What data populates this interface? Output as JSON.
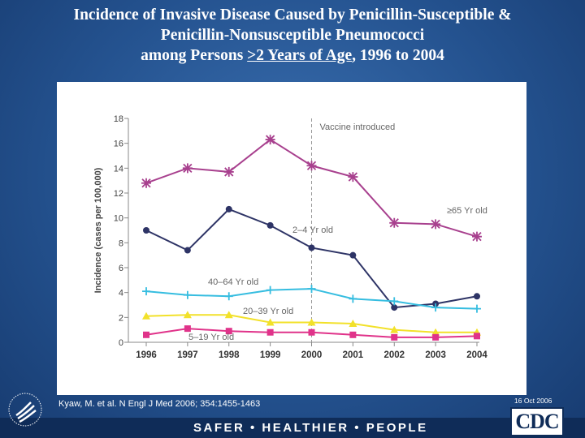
{
  "slide": {
    "title_line1": "Incidence of Invasive Disease Caused by Penicillin-Susceptible &",
    "title_line2": "Penicillin-Nonsusceptible Pneumococci",
    "title_line3_pre": "among Persons ",
    "title_line3_underlined": ">2 Years of Age",
    "title_line3_post": ", 1996 to 2004",
    "citation": "Kyaw, M. et al. N Engl J Med 2006; 354:1455-1463",
    "date": "16 Oct 2006",
    "slogan": "SAFER • HEALTHIER • PEOPLE",
    "cdc_logo_text": "CDC"
  },
  "chart_data": {
    "type": "line",
    "title": "",
    "xlabel": "",
    "ylabel": "Incidence (cases per 100,000)",
    "x": [
      1996,
      1997,
      1998,
      1999,
      2000,
      2001,
      2002,
      2003,
      2004
    ],
    "ylim": [
      0,
      18
    ],
    "yticks": [
      0,
      2,
      4,
      6,
      8,
      10,
      12,
      14,
      16,
      18
    ],
    "annotation": {
      "label": "Vaccine introduced",
      "x": 2000
    },
    "series": [
      {
        "name": "≥65 Yr old",
        "color": "#a8408e",
        "marker": "asterisk",
        "values": [
          12.8,
          14.0,
          13.7,
          16.3,
          14.2,
          13.3,
          9.6,
          9.5,
          8.5
        ]
      },
      {
        "name": "2–4 Yr old",
        "color": "#2e3466",
        "marker": "circle",
        "values": [
          9.0,
          7.4,
          10.7,
          9.4,
          7.6,
          7.0,
          2.8,
          3.1,
          3.7
        ]
      },
      {
        "name": "40–64 Yr old",
        "color": "#36bde0",
        "marker": "plus",
        "values": [
          4.1,
          3.8,
          3.7,
          4.2,
          4.3,
          3.5,
          3.3,
          2.8,
          2.7
        ]
      },
      {
        "name": "20–39 Yr old",
        "color": "#f2e12a",
        "marker": "triangle",
        "values": [
          2.1,
          2.2,
          2.2,
          1.6,
          1.6,
          1.5,
          1.0,
          0.8,
          0.8
        ]
      },
      {
        "name": "5–19 Yr old",
        "color": "#e0338a",
        "marker": "square",
        "values": [
          0.6,
          1.1,
          0.9,
          0.8,
          0.8,
          0.6,
          0.4,
          0.4,
          0.5
        ]
      }
    ]
  }
}
